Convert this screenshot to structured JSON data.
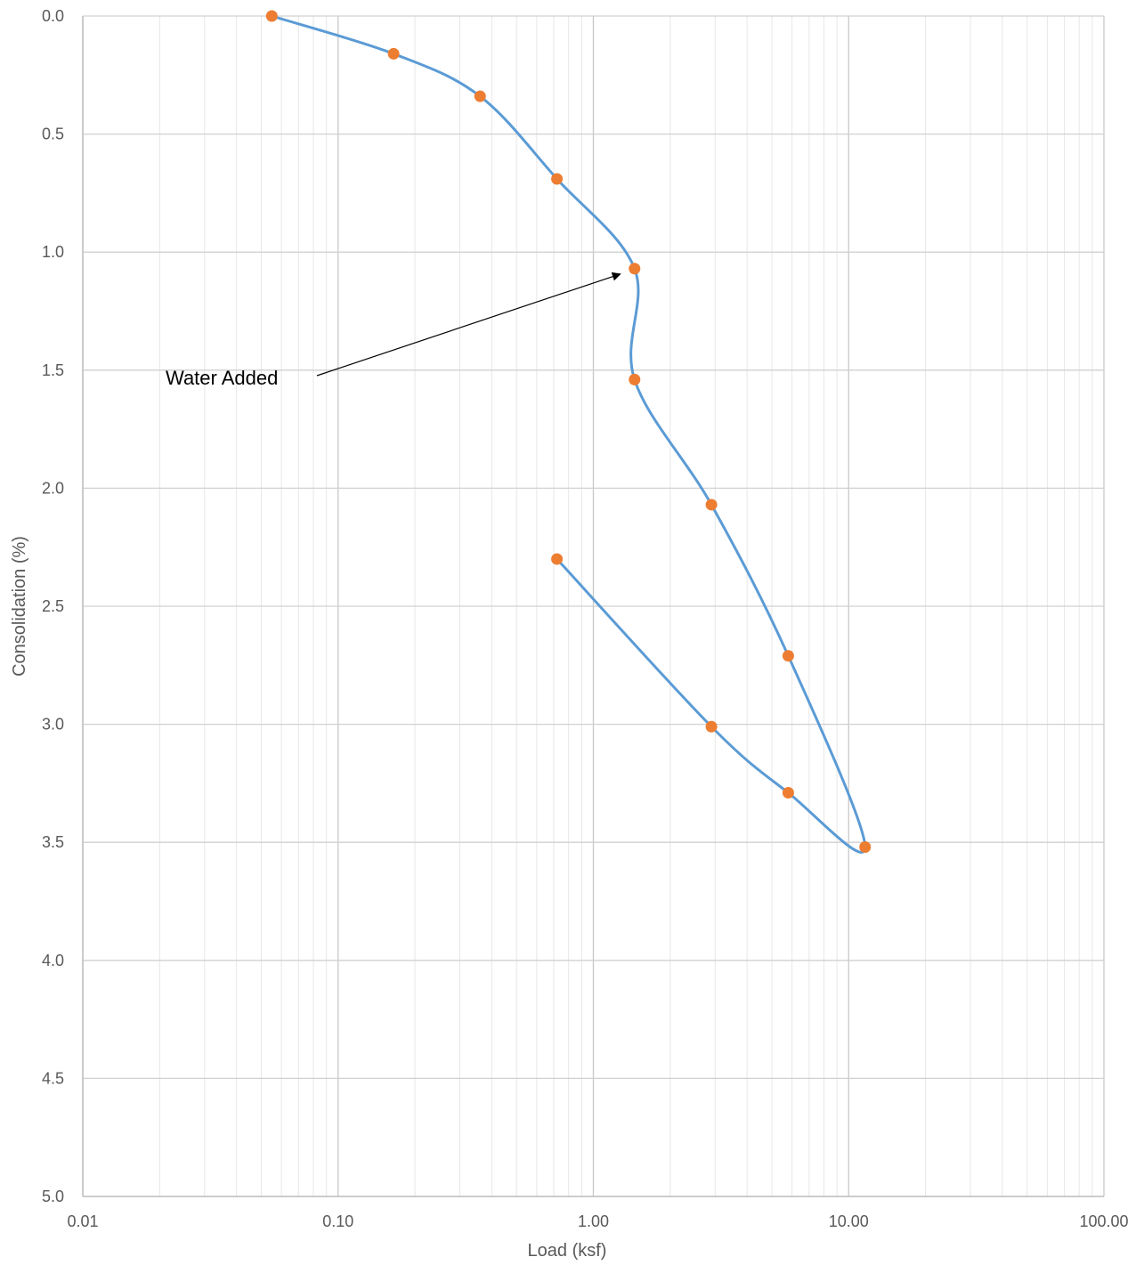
{
  "chart_data": {
    "type": "scatter",
    "xlabel": "Load (ksf)",
    "ylabel": "Consolidation (%)",
    "x_scale": "log",
    "xlim": [
      0.01,
      100
    ],
    "ylim": [
      0,
      5
    ],
    "y_reversed": true,
    "grid": true,
    "legend": "none",
    "x_ticks": [
      {
        "value": 0.01,
        "label": "0.01"
      },
      {
        "value": 0.1,
        "label": "0.10"
      },
      {
        "value": 1,
        "label": "1.00"
      },
      {
        "value": 10,
        "label": "10.00"
      },
      {
        "value": 100,
        "label": "100.00"
      }
    ],
    "y_ticks": [
      {
        "value": 0,
        "label": "0.0"
      },
      {
        "value": 0.5,
        "label": "0.5"
      },
      {
        "value": 1,
        "label": "1.0"
      },
      {
        "value": 1.5,
        "label": "1.5"
      },
      {
        "value": 2,
        "label": "2.0"
      },
      {
        "value": 2.5,
        "label": "2.5"
      },
      {
        "value": 3,
        "label": "3.0"
      },
      {
        "value": 3.5,
        "label": "3.5"
      },
      {
        "value": 4,
        "label": "4.0"
      },
      {
        "value": 4.5,
        "label": "4.5"
      },
      {
        "value": 5,
        "label": "5.0"
      }
    ],
    "series": [
      {
        "line_color": "#5B9BD5",
        "marker_color": "#ED7D31",
        "smooth": true,
        "points": [
          {
            "x": 0.055,
            "y": 0.0
          },
          {
            "x": 0.165,
            "y": 0.16
          },
          {
            "x": 0.36,
            "y": 0.34
          },
          {
            "x": 0.72,
            "y": 0.69
          },
          {
            "x": 1.45,
            "y": 1.07
          },
          {
            "x": 1.45,
            "y": 1.54
          },
          {
            "x": 2.9,
            "y": 2.07
          },
          {
            "x": 5.8,
            "y": 2.71
          },
          {
            "x": 11.6,
            "y": 3.52
          },
          {
            "x": 5.8,
            "y": 3.29
          },
          {
            "x": 2.9,
            "y": 3.01
          },
          {
            "x": 0.72,
            "y": 2.3
          }
        ]
      }
    ],
    "annotations": [
      {
        "text": "Water Added",
        "arrow_to": {
          "x": 1.45,
          "y": 1.07
        }
      }
    ]
  }
}
